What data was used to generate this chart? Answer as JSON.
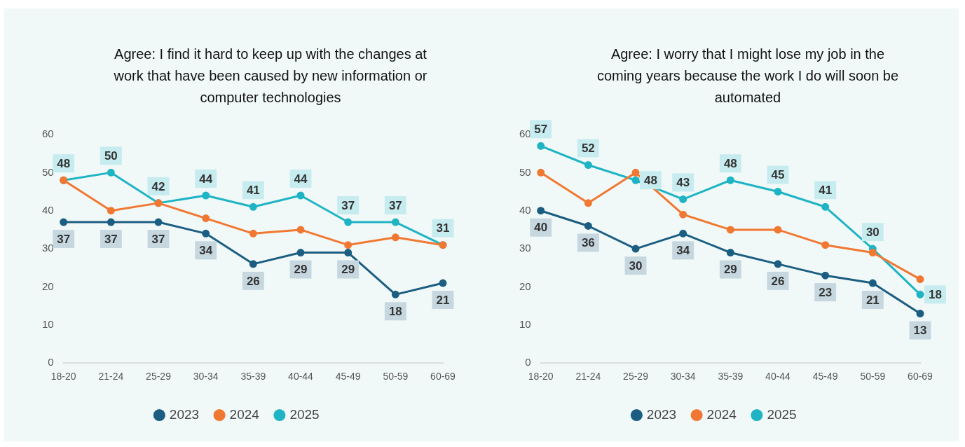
{
  "chart_data": [
    {
      "type": "line",
      "title": "Agree: I find it hard to keep up with the changes at work that have been caused by new information or computer technologies",
      "categories": [
        "18-20",
        "21-24",
        "25-29",
        "30-34",
        "35-39",
        "40-44",
        "45-49",
        "50-59",
        "60-69"
      ],
      "series": [
        {
          "name": "2023",
          "color": "#1b5e82",
          "values": [
            37,
            37,
            37,
            34,
            26,
            29,
            29,
            18,
            21
          ],
          "value_labels": [
            "37",
            "37",
            "37",
            "34",
            "26",
            "29",
            "29",
            "18",
            "21"
          ]
        },
        {
          "name": "2024",
          "color": "#f07832",
          "values": [
            48,
            40,
            42,
            38,
            34,
            35,
            31,
            33,
            31
          ]
        },
        {
          "name": "2025",
          "color": "#1fb4c4",
          "values": [
            48,
            50,
            42,
            44,
            41,
            44,
            37,
            37,
            31
          ],
          "value_labels": [
            "48",
            "50",
            "42",
            "44",
            "41",
            "44",
            "37",
            "37",
            "31"
          ]
        }
      ],
      "ylim": [
        0,
        60
      ],
      "yticks": [
        0,
        10,
        20,
        30,
        40,
        50,
        60
      ],
      "grid": false,
      "legend": "bottom",
      "marker": "circle"
    },
    {
      "type": "line",
      "title": "Agree: I worry that I might lose my job in the coming years because the work I do will soon be automated",
      "categories": [
        "18-20",
        "21-24",
        "25-29",
        "30-34",
        "35-39",
        "40-44",
        "45-49",
        "50-59",
        "60-69"
      ],
      "series": [
        {
          "name": "2023",
          "color": "#1b5e82",
          "values": [
            40,
            36,
            30,
            34,
            29,
            26,
            23,
            21,
            13
          ],
          "value_labels": [
            "40",
            "36",
            "30",
            "34",
            "29",
            "26",
            "23",
            "21",
            "13"
          ]
        },
        {
          "name": "2024",
          "color": "#f07832",
          "values": [
            50,
            42,
            50,
            39,
            35,
            35,
            31,
            29,
            22
          ]
        },
        {
          "name": "2025",
          "color": "#1fb4c4",
          "values": [
            57,
            52,
            48,
            43,
            48,
            45,
            41,
            30,
            18
          ],
          "value_labels": [
            "57",
            "52",
            "48",
            "43",
            "48",
            "45",
            "41",
            "30",
            "18"
          ]
        }
      ],
      "ylim": [
        0,
        60
      ],
      "yticks": [
        0,
        10,
        20,
        30,
        40,
        50,
        60
      ],
      "grid": false,
      "legend": "bottom",
      "marker": "circle"
    }
  ]
}
